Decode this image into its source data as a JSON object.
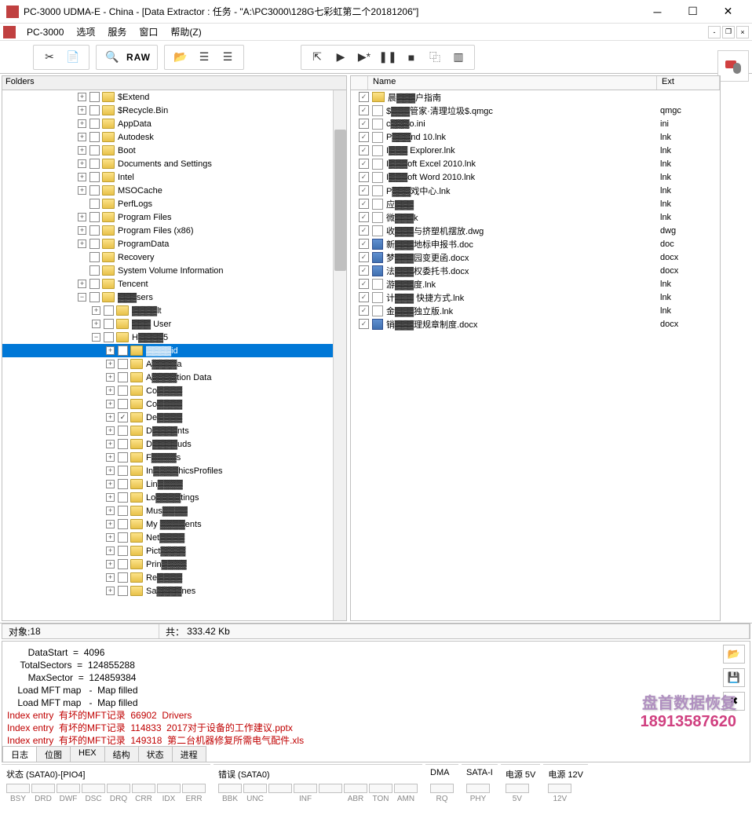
{
  "titlebar": {
    "text": "PC-3000 UDMA-E - China - [Data Extractor : 任务 - \"A:\\PC3000\\128G七彩虹第二个20181206\"]"
  },
  "menubar": {
    "app": "PC-3000",
    "items": [
      "选项",
      "服务",
      "窗口",
      "帮助(Z)"
    ]
  },
  "toolbar": {
    "raw_label": "RAW"
  },
  "left_panel": {
    "header": "Folders",
    "tree": [
      {
        "indent": 96,
        "expand": "+",
        "check": "",
        "label": "$Extend",
        "blur": false
      },
      {
        "indent": 96,
        "expand": "+",
        "check": "",
        "label": "$Recycle.Bin",
        "blur": false
      },
      {
        "indent": 96,
        "expand": "+",
        "check": "",
        "label": "AppData",
        "blur": false
      },
      {
        "indent": 96,
        "expand": "+",
        "check": "",
        "label": "Autodesk",
        "blur": false
      },
      {
        "indent": 96,
        "expand": "+",
        "check": "",
        "label": "Boot",
        "blur": false
      },
      {
        "indent": 96,
        "expand": "+",
        "check": "",
        "label": "Documents and Settings",
        "blur": false
      },
      {
        "indent": 96,
        "expand": "+",
        "check": "",
        "label": "Intel",
        "blur": false
      },
      {
        "indent": 96,
        "expand": "+",
        "check": "",
        "label": "MSOCache",
        "blur": false
      },
      {
        "indent": 96,
        "expand": "",
        "check": "",
        "label": "PerfLogs",
        "blur": false
      },
      {
        "indent": 96,
        "expand": "+",
        "check": "",
        "label": "Program Files",
        "blur": false
      },
      {
        "indent": 96,
        "expand": "+",
        "check": "",
        "label": "Program Files (x86)",
        "blur": false
      },
      {
        "indent": 96,
        "expand": "+",
        "check": "",
        "label": "ProgramData",
        "blur": false
      },
      {
        "indent": 96,
        "expand": "",
        "check": "",
        "label": "Recovery",
        "blur": false
      },
      {
        "indent": 96,
        "expand": "",
        "check": "",
        "label": "System Volume Information",
        "blur": false
      },
      {
        "indent": 96,
        "expand": "+",
        "check": "",
        "label": "Tencent",
        "blur": false
      },
      {
        "indent": 96,
        "expand": "−",
        "check": "",
        "label": "▓▓▓sers",
        "blur": true
      },
      {
        "indent": 114,
        "expand": "+",
        "check": "",
        "label": "▓▓▓▓lt",
        "blur": true
      },
      {
        "indent": 114,
        "expand": "+",
        "check": "",
        "label": "▓▓▓ User",
        "blur": true
      },
      {
        "indent": 114,
        "expand": "−",
        "check": "",
        "label": "H▓▓▓▓5",
        "blur": true
      },
      {
        "indent": 132,
        "expand": "+",
        "check": "",
        "label": "▓▓▓▓id",
        "blur": true,
        "selected": true
      },
      {
        "indent": 132,
        "expand": "+",
        "check": "",
        "label": "A▓▓▓▓a",
        "blur": true
      },
      {
        "indent": 132,
        "expand": "+",
        "check": "",
        "label": "A▓▓▓▓tion Data",
        "blur": true
      },
      {
        "indent": 132,
        "expand": "+",
        "check": "",
        "label": "Co▓▓▓▓",
        "blur": true
      },
      {
        "indent": 132,
        "expand": "+",
        "check": "",
        "label": "Co▓▓▓▓",
        "blur": true
      },
      {
        "indent": 132,
        "expand": "+",
        "check": "✓",
        "label": "De▓▓▓▓",
        "blur": true
      },
      {
        "indent": 132,
        "expand": "+",
        "check": "",
        "label": "D▓▓▓▓nts",
        "blur": true
      },
      {
        "indent": 132,
        "expand": "+",
        "check": "",
        "label": "D▓▓▓▓uds",
        "blur": true
      },
      {
        "indent": 132,
        "expand": "+",
        "check": "",
        "label": "F▓▓▓▓s",
        "blur": true
      },
      {
        "indent": 132,
        "expand": "+",
        "check": "",
        "label": "In▓▓▓▓hicsProfiles",
        "blur": true
      },
      {
        "indent": 132,
        "expand": "+",
        "check": "",
        "label": "Lin▓▓▓▓",
        "blur": true
      },
      {
        "indent": 132,
        "expand": "+",
        "check": "",
        "label": "Lo▓▓▓▓tings",
        "blur": true
      },
      {
        "indent": 132,
        "expand": "+",
        "check": "",
        "label": "Mus▓▓▓▓",
        "blur": true
      },
      {
        "indent": 132,
        "expand": "+",
        "check": "",
        "label": "My ▓▓▓▓ents",
        "blur": true
      },
      {
        "indent": 132,
        "expand": "+",
        "check": "",
        "label": "Net▓▓▓▓",
        "blur": true
      },
      {
        "indent": 132,
        "expand": "+",
        "check": "",
        "label": "Pict▓▓▓▓",
        "blur": true
      },
      {
        "indent": 132,
        "expand": "+",
        "check": "",
        "label": "Prin▓▓▓▓",
        "blur": true
      },
      {
        "indent": 132,
        "expand": "+",
        "check": "",
        "label": "Re▓▓▓▓",
        "blur": true
      },
      {
        "indent": 132,
        "expand": "+",
        "check": "",
        "label": "Sa▓▓▓▓nes",
        "blur": true
      }
    ]
  },
  "right_panel": {
    "col_name": "Name",
    "col_ext": "Ext",
    "rows": [
      {
        "check": "✓",
        "icon": "folder",
        "name": "晨▓▓▓户指南",
        "ext": "",
        "blur": true
      },
      {
        "check": "✓",
        "icon": "file",
        "name": "$▓▓▓管家·清理垃圾$.qmgc",
        "ext": "qmgc",
        "blur": true
      },
      {
        "check": "✓",
        "icon": "file",
        "name": "c▓▓▓o.ini",
        "ext": "ini",
        "blur": true
      },
      {
        "check": "✓",
        "icon": "file",
        "name": "P▓▓▓nd 10.lnk",
        "ext": "lnk",
        "blur": true
      },
      {
        "check": "✓",
        "icon": "file",
        "name": "I▓▓▓ Explorer.lnk",
        "ext": "lnk",
        "blur": true
      },
      {
        "check": "✓",
        "icon": "file",
        "name": "I▓▓▓oft Excel 2010.lnk",
        "ext": "lnk",
        "blur": true
      },
      {
        "check": "✓",
        "icon": "file",
        "name": "I▓▓▓oft Word 2010.lnk",
        "ext": "lnk",
        "blur": true
      },
      {
        "check": "✓",
        "icon": "file",
        "name": "P▓▓▓戏中心.lnk",
        "ext": "lnk",
        "blur": true
      },
      {
        "check": "✓",
        "icon": "file",
        "name": "应▓▓▓",
        "ext": "lnk",
        "blur": true
      },
      {
        "check": "✓",
        "icon": "file",
        "name": "微▓▓▓k",
        "ext": "lnk",
        "blur": true
      },
      {
        "check": "✓",
        "icon": "file",
        "name": "收▓▓▓与挤塑机摆放.dwg",
        "ext": "dwg",
        "blur": true
      },
      {
        "check": "✓",
        "icon": "doc",
        "name": "新▓▓▓地标申报书.doc",
        "ext": "doc",
        "blur": true
      },
      {
        "check": "✓",
        "icon": "doc",
        "name": "梦▓▓▓园变更函.docx",
        "ext": "docx",
        "blur": true
      },
      {
        "check": "✓",
        "icon": "doc",
        "name": "法▓▓▓权委托书.docx",
        "ext": "docx",
        "blur": true
      },
      {
        "check": "✓",
        "icon": "file",
        "name": "游▓▓▓度.lnk",
        "ext": "lnk",
        "blur": true
      },
      {
        "check": "✓",
        "icon": "file",
        "name": "计▓▓▓ 快捷方式.lnk",
        "ext": "lnk",
        "blur": true
      },
      {
        "check": "✓",
        "icon": "file",
        "name": "金▓▓▓独立版.lnk",
        "ext": "lnk",
        "blur": true
      },
      {
        "check": "✓",
        "icon": "doc",
        "name": "销▓▓▓理规章制度.docx",
        "ext": "docx",
        "blur": true
      }
    ]
  },
  "status": {
    "objects_label": "对象:",
    "objects_val": "18",
    "size_label": "共：",
    "size_val": "333.42 Kb"
  },
  "log": {
    "lines": [
      {
        "text": "        DataStart  =  4096",
        "error": false
      },
      {
        "text": "     TotalSectors  =  124855288",
        "error": false
      },
      {
        "text": "        MaxSector  =  124859384",
        "error": false
      },
      {
        "text": "    Load MFT map   -  Map filled",
        "error": false
      },
      {
        "text": "    Load MFT map   -  Map filled",
        "error": false
      },
      {
        "text": "Index entry  有坏的MFT记录  66902  Drivers",
        "error": true
      },
      {
        "text": "Index entry  有坏的MFT记录  114833  2017对于设备的工作建议.pptx",
        "error": true
      },
      {
        "text": "Index entry  有坏的MFT记录  149318  第二台机器修复所需电气配件.xls",
        "error": true
      }
    ],
    "tabs": [
      "日志",
      "位图",
      "HEX",
      "结构",
      "状态",
      "进程"
    ]
  },
  "hw": {
    "groups": [
      {
        "title": "状态 (SATA0)-[PIO4]",
        "leds": [
          "BSY",
          "DRD",
          "DWF",
          "DSC",
          "DRQ",
          "CRR",
          "IDX",
          "ERR"
        ]
      },
      {
        "title": "错误 (SATA0)",
        "leds": [
          "BBK",
          "UNC",
          "",
          "INF",
          "",
          "ABR",
          "TON",
          "AMN"
        ]
      },
      {
        "title": "DMA",
        "leds": [
          "RQ"
        ]
      },
      {
        "title": "SATA-I",
        "leds": [
          "PHY"
        ]
      },
      {
        "title": "电源 5V",
        "leds": [
          "5V"
        ]
      },
      {
        "title": "电源 12V",
        "leds": [
          "12V"
        ]
      }
    ]
  },
  "watermark": {
    "text": "盘首数据恢复",
    "phone": "18913587620"
  }
}
